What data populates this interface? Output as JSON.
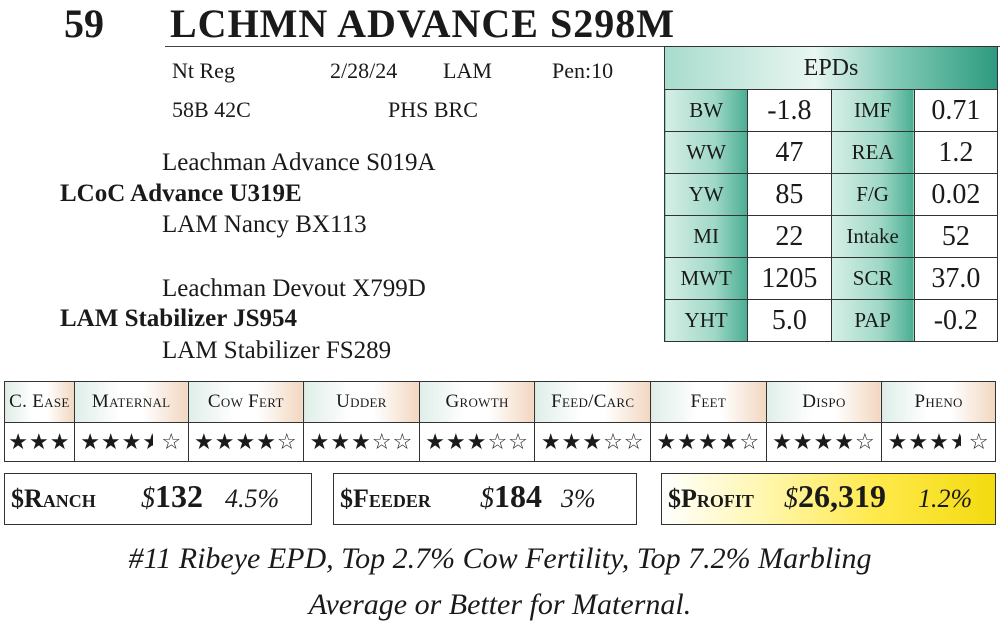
{
  "header": {
    "lot": "59",
    "name": "LCHMN ADVANCE S298M"
  },
  "info": {
    "reg": "Nt Reg",
    "date": "2/28/24",
    "breeder": "LAM",
    "pen": "Pen:10",
    "tattoo": "58B 42C",
    "codes": "PHS BRC"
  },
  "pedigree": {
    "sire_sire": "Leachman Advance S019A",
    "sire": "LCoC Advance U319E",
    "sire_dam": "LAM Nancy BX113",
    "dam_sire": "Leachman Devout X799D",
    "dam": "LAM Stabilizer JS954",
    "dam_dam": "LAM Stabilizer FS289"
  },
  "epds": {
    "title": "EPDs",
    "rows": [
      {
        "l1": "BW",
        "v1": "-1.8",
        "l2": "IMF",
        "v2": "0.71"
      },
      {
        "l1": "WW",
        "v1": "47",
        "l2": "REA",
        "v2": "1.2"
      },
      {
        "l1": "YW",
        "v1": "85",
        "l2": "F/G",
        "v2": "0.02"
      },
      {
        "l1": "MI",
        "v1": "22",
        "l2": "Intake",
        "v2": "52"
      },
      {
        "l1": "MWT",
        "v1": "1205",
        "l2": "SCR",
        "v2": "37.0"
      },
      {
        "l1": "YHT",
        "v1": "5.0",
        "l2": "PAP",
        "v2": "-0.2"
      }
    ]
  },
  "ratings": {
    "labels": [
      "C. Ease",
      "Maternal",
      "Cow Fert",
      "Udder",
      "Growth",
      "Feed/Carc",
      "Feet",
      "Dispo",
      "Pheno"
    ],
    "stars": [
      3,
      3.5,
      4,
      3,
      3,
      3,
      4,
      4,
      3.5
    ],
    "out_of": [
      3,
      5,
      5,
      5,
      5,
      5,
      5,
      5,
      5
    ]
  },
  "indexes": {
    "ranch": {
      "label": "$Ranch",
      "dollar": "$",
      "value": "132",
      "pct": "4.5%"
    },
    "feeder": {
      "label": "$Feeder",
      "dollar": "$",
      "value": "184",
      "pct": "3%"
    },
    "profit": {
      "label": "$Profit",
      "dollar": "$",
      "value": "26,319",
      "pct": "1.2%"
    }
  },
  "footer": {
    "line1": "#11 Ribeye EPD, Top 2.7% Cow Fertility, Top 7.2% Marbling",
    "line2": "Average or Better for Maternal."
  }
}
